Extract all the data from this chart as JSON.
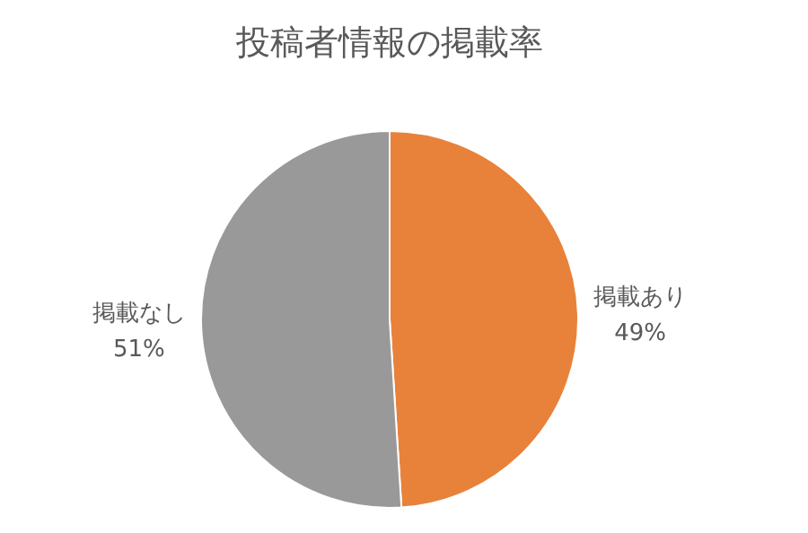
{
  "chart_data": {
    "type": "pie",
    "title": "投稿者情報の掲載率",
    "categories": [
      "掲載あり",
      "掲載なし"
    ],
    "values": [
      49,
      51
    ],
    "colors": [
      "#e8823a",
      "#999999"
    ],
    "value_labels": [
      "49%",
      "51%"
    ]
  }
}
